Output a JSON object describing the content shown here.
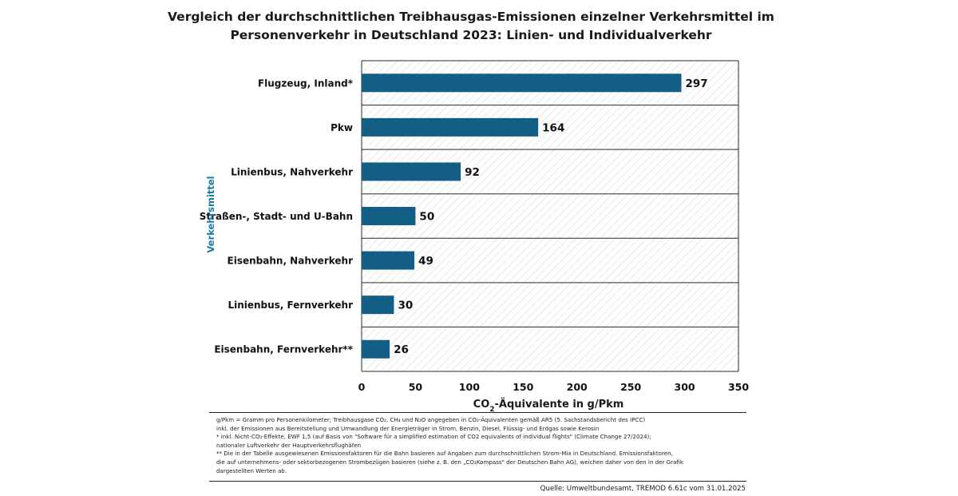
{
  "title_lines": [
    "Vergleich der durchschnittlichen Treibhausgas-Emissionen einzelner Verkehrsmittel im",
    "Personenverkehr in Deutschland 2023: Linien- und Individualverkehr"
  ],
  "colors": {
    "bar": "#135e85",
    "ylabel": "#1b7aa6",
    "grid": "#2a2a2a",
    "hatch": "#c9c9c9"
  },
  "chart_data": {
    "type": "bar",
    "orientation": "horizontal",
    "title": "Vergleich der durchschnittlichen Treibhausgas-Emissionen einzelner Verkehrsmittel im Personenverkehr in Deutschland 2023: Linien- und Individualverkehr",
    "categories": [
      "Flugzeug, Inland*",
      "Pkw",
      "Linienbus, Nahverkehr",
      "Straßen-, Stadt- und U-Bahn",
      "Eisenbahn, Nahverkehr",
      "Linienbus, Fernverkehr",
      "Eisenbahn, Fernverkehr**"
    ],
    "values": [
      297,
      164,
      92,
      50,
      49,
      30,
      26
    ],
    "xlabel_pre": "CO",
    "xlabel_sub": "2",
    "xlabel_post": "-Äquivalente in g/Pkm",
    "ylabel": "Verkehrsmittel",
    "xlim": [
      0,
      350
    ],
    "xticks": [
      "0",
      "50",
      "100",
      "150",
      "200",
      "250",
      "300",
      "350"
    ]
  },
  "notes": [
    "g/Pkm = Gramm pro Personenkilometer; Treibhausgase CO₂, CH₄ und N₂O angegeben in CO₂-Äquivalenten gemäß AR5 (5. Sachstandsbericht des IPCC)",
    "inkl. der Emissionen aus Bereitstellung und Umwandlung der Energieträger in Strom, Benzin, Diesel, Flüssig- und Erdgas sowie Kerosin",
    "* inkl. Nicht-CO₂-Effekte, EWF 1,5 (auf Basis von \"Software für a simplified estimation of CO2 equivalents of individual flights\" (Climate Change 27/2024);",
    "nationaler Luftverkehr der Hauptverkehrsflughäfen",
    "** Die in der Tabelle ausgewiesenen Emissionsfaktoren für die Bahn basieren auf Angaben zum durchschnittlichen Strom-Mix in Deutschland. Emissionsfaktoren,",
    "die auf unternehmens- oder sektorbezogenen Strombezügen basieren (siehe z. B. den „CO₂Kompass\" der Deutschen Bahn AG), weichen daher von den in der Grafik",
    "dargestellten Werten ab."
  ],
  "source": "Quelle: Umweltbundesamt, TREMOD 6.61c vom 31.01.2025"
}
